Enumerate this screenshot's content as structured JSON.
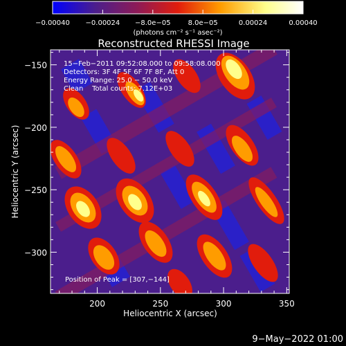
{
  "chart_data": {
    "type": "heatmap",
    "title": "Reconstructed RHESSI Image",
    "xlabel": "Heliocentric X (arcsec)",
    "ylabel": "Heliocentric Y (arcsec)",
    "xlim": [
      163,
      352
    ],
    "ylim": [
      -333,
      -138
    ],
    "x_ticks": [
      200,
      250,
      300,
      350
    ],
    "y_ticks": [
      -150,
      -200,
      -250,
      -300
    ],
    "colorbar": {
      "range": [
        -0.0004,
        0.0004
      ],
      "tick_values": [
        -0.0004,
        -0.00024,
        -8e-05,
        8e-05,
        0.00024,
        0.0004
      ],
      "tick_labels": [
        "−0.00040",
        "−0.00024",
        "−8.0e−05",
        "8.0e−05",
        "0.00024",
        "0.00040"
      ],
      "unit_label": "(photons cm⁻² s⁻¹ asec⁻²)",
      "colormap": [
        "#0000ff",
        "#4b1e8c",
        "#8e1a56",
        "#e11c0c",
        "#ff9c00",
        "#ffff8c",
        "#ffffff"
      ]
    },
    "annotations": [
      "15−Feb−2011 09:52:08.000 to 09:58:08.000",
      "Detectors: 3F 4F 5F 6F 7F 8F, Att 0",
      "Energy Range: 25.0 − 50.0 keV",
      "Clean    Total counts: 7.12E+03"
    ],
    "peak_label": "Position of Peak = [307,−144]",
    "timestamp": "9−May−2022 01:00"
  }
}
